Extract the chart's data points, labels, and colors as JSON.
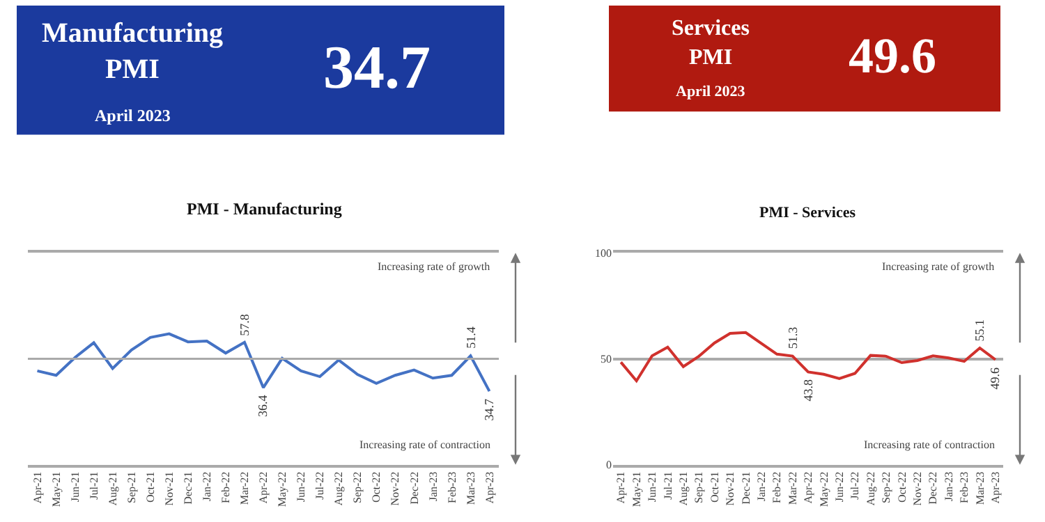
{
  "chart_data": [
    {
      "type": "other",
      "title": "Manufacturing PMI",
      "subtitle": "April 2023",
      "annotations": [
        "34.7"
      ],
      "colors": [
        "#1b3a9e"
      ]
    },
    {
      "type": "other",
      "title": "Services PMI",
      "subtitle": "April 2023",
      "annotations": [
        "49.6"
      ],
      "colors": [
        "#b01a10"
      ]
    },
    {
      "type": "line",
      "title": "PMI - Manufacturing",
      "categories": [
        "Apr-21",
        "May-21",
        "Jun-21",
        "Jul-21",
        "Aug-21",
        "Sep-21",
        "Oct-21",
        "Nov-21",
        "Dec-21",
        "Jan-22",
        "Feb-22",
        "Mar-22",
        "Apr-22",
        "May-22",
        "Jun-22",
        "Jul-22",
        "Aug-22",
        "Sep-22",
        "Oct-22",
        "Nov-22",
        "Dec-22",
        "Jan-23",
        "Feb-23",
        "Mar-23",
        "Apr-23"
      ],
      "series": [
        {
          "color": "#4472c4",
          "values": [
            44.3,
            42.2,
            50.6,
            57.6,
            45.4,
            54.2,
            60.1,
            61.8,
            58.0,
            58.4,
            52.7,
            57.8,
            36.4,
            50.2,
            44.3,
            41.6,
            49.4,
            42.6,
            38.4,
            42.2,
            44.7,
            40.9,
            42.2,
            51.4,
            34.7
          ],
          "value_labels": [
            null,
            null,
            null,
            null,
            null,
            null,
            null,
            null,
            null,
            null,
            null,
            "57.8",
            "36.4",
            null,
            null,
            null,
            null,
            null,
            null,
            null,
            null,
            null,
            null,
            "51.4",
            "34.7"
          ]
        }
      ],
      "ylim": [
        0,
        100
      ],
      "tick_labels": "x",
      "ref_lines": [
        {
          "axis": "y",
          "value": 50,
          "color": "#aaaaaa"
        }
      ],
      "marker": "none",
      "line_style": "solid",
      "annotations": [
        "Increasing rate of growth",
        "Increasing rate of contraction"
      ]
    },
    {
      "type": "line",
      "title": "PMI - Services",
      "categories": [
        "Apr-21",
        "May-21",
        "Jun-21",
        "Jul-21",
        "Aug-21",
        "Sep-21",
        "Oct-21",
        "Nov-21",
        "Dec-21",
        "Jan-22",
        "Feb-22",
        "Mar-22",
        "Apr-22",
        "May-22",
        "Jun-22",
        "Jul-22",
        "Aug-22",
        "Sep-22",
        "Oct-22",
        "Nov-22",
        "Dec-22",
        "Jan-23",
        "Feb-23",
        "Mar-23",
        "Apr-23"
      ],
      "series": [
        {
          "color": "#d0312d",
          "values": [
            48.4,
            39.6,
            51.4,
            55.5,
            46.3,
            51.2,
            57.5,
            62.0,
            62.4,
            57.3,
            52.2,
            51.3,
            43.8,
            42.7,
            40.7,
            43.1,
            51.6,
            51.2,
            48.2,
            49.2,
            51.4,
            50.4,
            48.8,
            55.1,
            49.6
          ],
          "value_labels": [
            null,
            null,
            null,
            null,
            null,
            null,
            null,
            null,
            null,
            null,
            null,
            "51.3",
            "43.8",
            null,
            null,
            null,
            null,
            null,
            null,
            null,
            null,
            null,
            null,
            "55.1",
            "49.6"
          ]
        }
      ],
      "ylim": [
        0,
        100
      ],
      "yticks": [
        0,
        50,
        100
      ],
      "grid": "y",
      "marker": "none",
      "line_style": "solid",
      "annotations": [
        "Increasing rate of growth",
        "Increasing rate of contraction"
      ]
    }
  ]
}
